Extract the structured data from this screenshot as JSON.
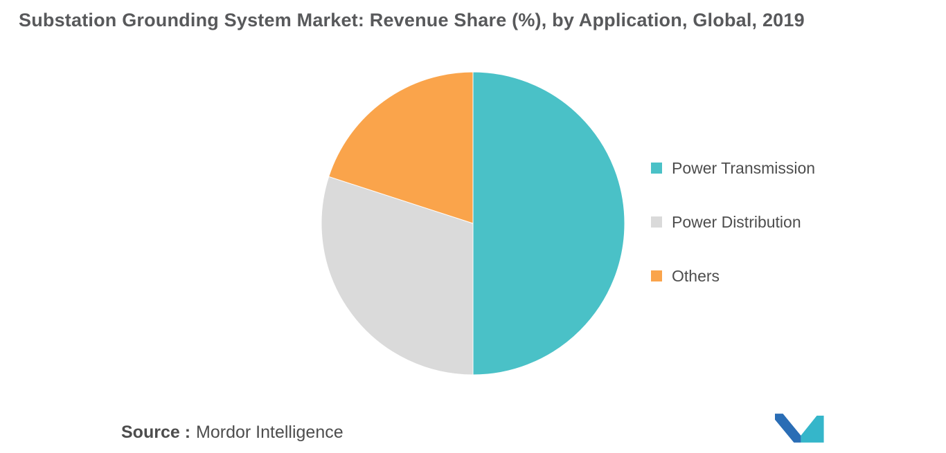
{
  "title": "Substation Grounding System Market: Revenue Share (%), by Application, Global, 2019",
  "chart_data": {
    "type": "pie",
    "title": "Substation Grounding System Market: Revenue Share (%), by Application, Global, 2019",
    "categories": [
      "Power Transmission",
      "Power Distribution",
      "Others"
    ],
    "values": [
      50,
      30,
      20
    ],
    "unit": "%",
    "colors": [
      "#4ac1c7",
      "#dadada",
      "#faa44b"
    ],
    "start_angle_deg": 0,
    "direction": "clockwise",
    "legend_position": "right",
    "data_labels": false,
    "grid": false
  },
  "source": {
    "label": "Source :",
    "text": "Mordor Intelligence"
  },
  "logo": {
    "name": "mordor-intelligence-logo",
    "blue": "#2a6db5",
    "teal": "#35b6ca"
  },
  "theme": {
    "background": "#ffffff",
    "title_color": "#58595b",
    "text_color": "#4d4d4d",
    "slice_border": "#ffffff"
  }
}
